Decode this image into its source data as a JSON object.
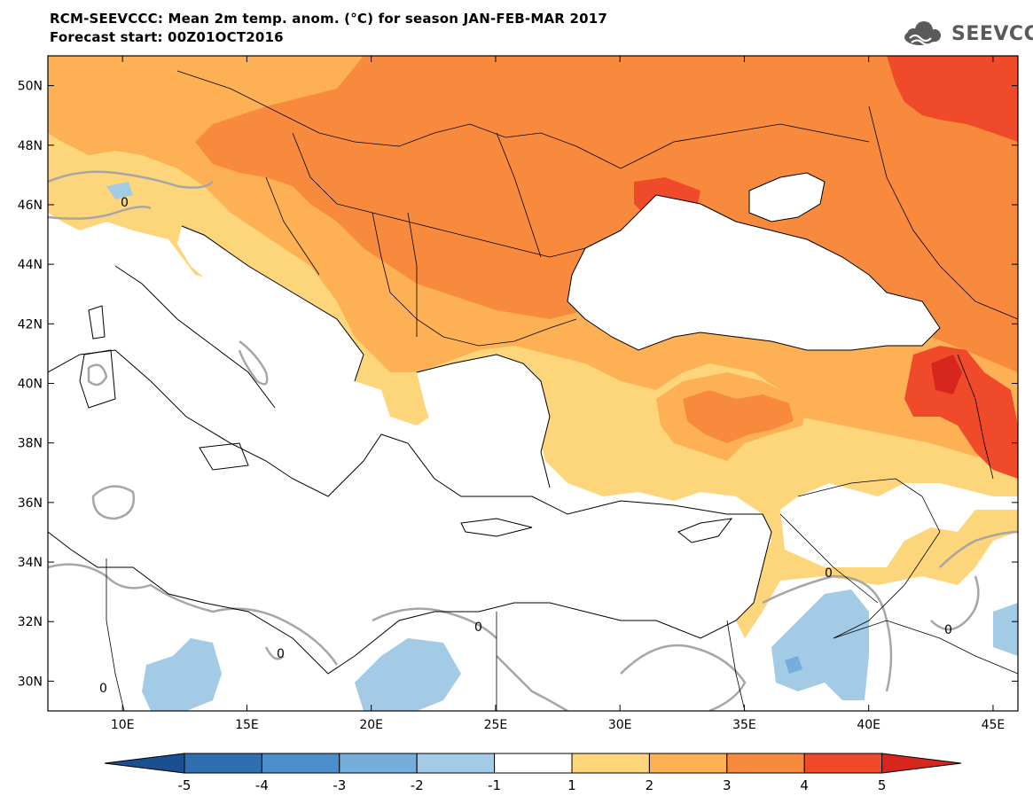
{
  "title": {
    "line1": "RCM-SEEVCCC: Mean 2m temp. anom. (°C) for season JAN-FEB-MAR 2017",
    "line2": "Forecast start: 00Z01OCT2016"
  },
  "logo": {
    "text": "SEEVCCC",
    "icon": "cloud-icon"
  },
  "map": {
    "lon_range": [
      7,
      46
    ],
    "lat_range": [
      29,
      51
    ],
    "lon_ticks": [
      "10E",
      "15E",
      "20E",
      "25E",
      "30E",
      "35E",
      "40E",
      "45E"
    ],
    "lat_ticks": [
      "50N",
      "48N",
      "46N",
      "44N",
      "42N",
      "40N",
      "38N",
      "36N",
      "34N",
      "32N",
      "30N"
    ],
    "contour_label": "0"
  },
  "colorbar": {
    "labels": [
      "-5",
      "-4",
      "-3",
      "-2",
      "-1",
      "1",
      "2",
      "3",
      "4",
      "5"
    ],
    "colors": [
      "#1a4f91",
      "#2f6fb0",
      "#4a8fcc",
      "#74aedc",
      "#a3cbe6",
      "#ffffff",
      "#fdd57a",
      "#fdb154",
      "#f88a3d",
      "#ef4a2a",
      "#d7261e"
    ]
  }
}
